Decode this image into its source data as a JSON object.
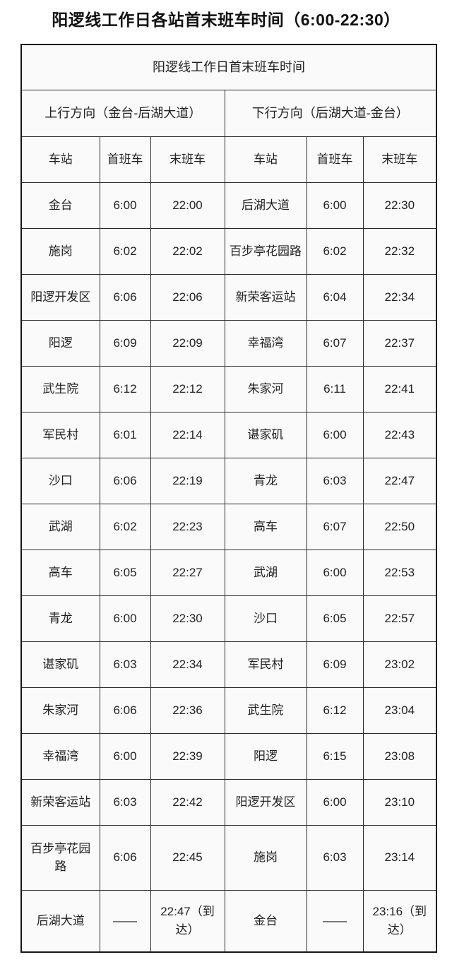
{
  "page_title": "阳逻线工作日各站首末班车时间（6:00-22:30）",
  "table": {
    "title": "阳逻线工作日首末班车时间",
    "directions": [
      {
        "label": "上行方向（金台-后湖大道）"
      },
      {
        "label": "下行方向（后湖大道-金台）"
      }
    ],
    "column_headers": [
      "车站",
      "首班车",
      "末班车",
      "车站",
      "首班车",
      "末班车"
    ],
    "rows": [
      [
        "金台",
        "6:00",
        "22:00",
        "后湖大道",
        "6:00",
        "22:30"
      ],
      [
        "施岗",
        "6:02",
        "22:02",
        "百步亭花园路",
        "6:02",
        "22:32"
      ],
      [
        "阳逻开发区",
        "6:06",
        "22:06",
        "新荣客运站",
        "6:04",
        "22:34"
      ],
      [
        "阳逻",
        "6:09",
        "22:09",
        "幸福湾",
        "6:07",
        "22:37"
      ],
      [
        "武生院",
        "6:12",
        "22:12",
        "朱家河",
        "6:11",
        "22:41"
      ],
      [
        "军民村",
        "6:01",
        "22:14",
        "谌家矶",
        "6:00",
        "22:43"
      ],
      [
        "沙口",
        "6:06",
        "22:19",
        "青龙",
        "6:03",
        "22:47"
      ],
      [
        "武湖",
        "6:02",
        "22:23",
        "高车",
        "6:07",
        "22:50"
      ],
      [
        "高车",
        "6:05",
        "22:27",
        "武湖",
        "6:00",
        "22:53"
      ],
      [
        "青龙",
        "6:00",
        "22:30",
        "沙口",
        "6:05",
        "22:57"
      ],
      [
        "谌家矶",
        "6:03",
        "22:34",
        "军民村",
        "6:09",
        "23:02"
      ],
      [
        "朱家河",
        "6:06",
        "22:36",
        "武生院",
        "6:12",
        "23:04"
      ],
      [
        "幸福湾",
        "6:00",
        "22:39",
        "阳逻",
        "6:15",
        "23:08"
      ],
      [
        "新荣客运站",
        "6:03",
        "22:42",
        "阳逻开发区",
        "6:00",
        "23:10"
      ],
      [
        "百步亭花园路",
        "6:06",
        "22:45",
        "施岗",
        "6:03",
        "23:14"
      ],
      [
        "后湖大道",
        "——",
        "22:47（到达）",
        "金台",
        "——",
        "23:16（到达）"
      ]
    ]
  },
  "colors": {
    "page_background": "#ffffff",
    "cell_background": "#fafafa",
    "border": "#2b2b2b",
    "text": "#222222"
  }
}
